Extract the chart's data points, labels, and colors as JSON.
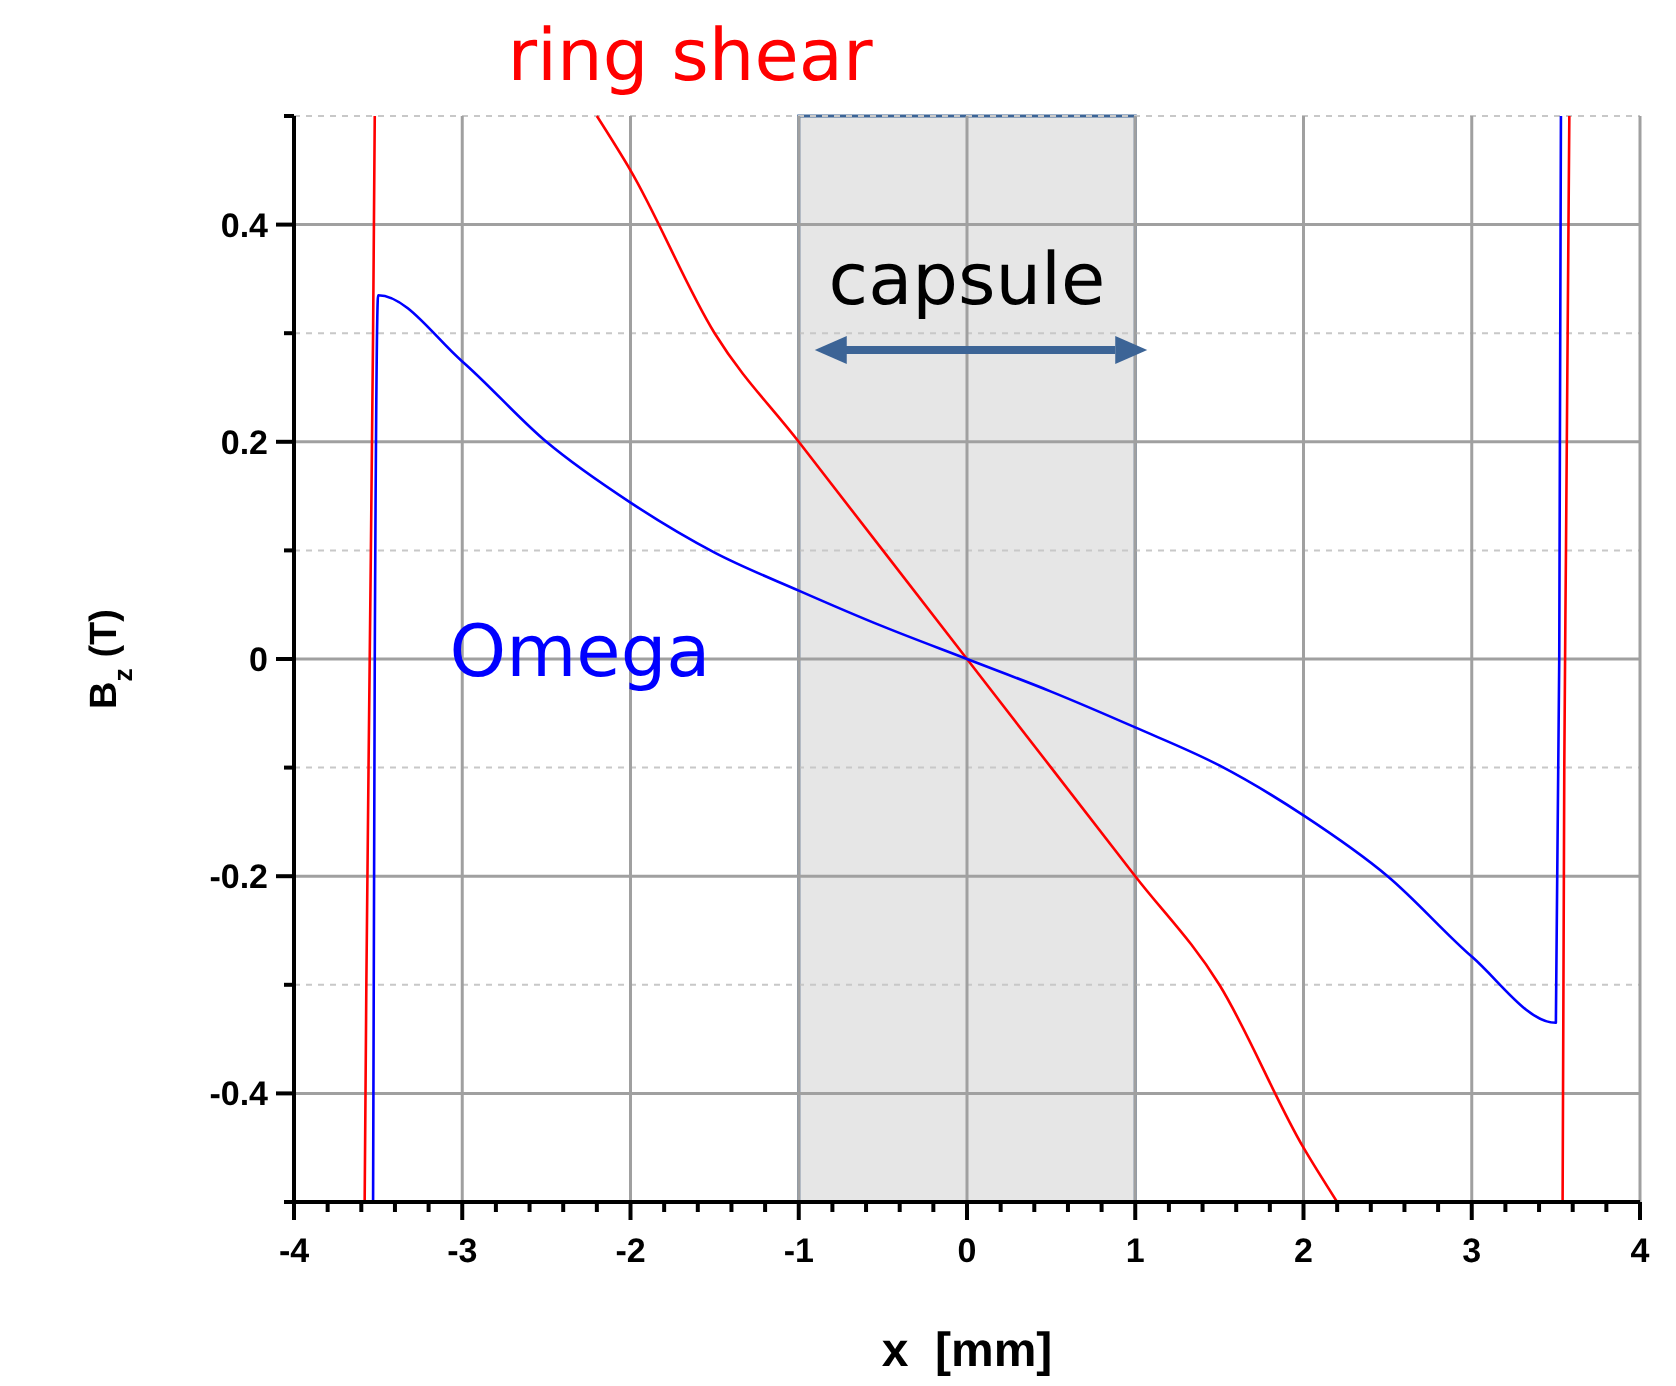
{
  "chart_data": {
    "type": "line",
    "xlabel": "x  [mm]",
    "ylabel": "B$_{z}$ (T)",
    "xlim": [
      -4,
      4
    ],
    "ylim": [
      -0.5,
      0.5
    ],
    "xticks": [
      -4,
      {
        "value": -3.8,
        "label": null
      },
      {
        "value": -3.6,
        "label": null
      },
      {
        "value": -3.4,
        "label": null
      },
      {
        "value": -3.2,
        "label": null
      },
      -3,
      {
        "value": -2.8,
        "label": null
      },
      {
        "value": -2.6,
        "label": null
      },
      {
        "value": -2.4,
        "label": null
      },
      {
        "value": -2.2,
        "label": null
      },
      -2,
      {
        "value": -1.8,
        "label": null
      },
      {
        "value": -1.6,
        "label": null
      },
      {
        "value": -1.4,
        "label": null
      },
      {
        "value": -1.2,
        "label": null
      },
      -1,
      {
        "value": -0.8,
        "label": null
      },
      {
        "value": -0.6,
        "label": null
      },
      {
        "value": -0.4,
        "label": null
      },
      {
        "value": -0.2,
        "label": null
      },
      0,
      {
        "value": 0.2,
        "label": null
      },
      {
        "value": 0.4,
        "label": null
      },
      {
        "value": 0.6,
        "label": null
      },
      {
        "value": 0.8,
        "label": null
      },
      1,
      {
        "value": 1.2,
        "label": null
      },
      {
        "value": 1.4,
        "label": null
      },
      {
        "value": 1.6,
        "label": null
      },
      {
        "value": 1.8,
        "label": null
      },
      2,
      {
        "value": 2.2,
        "label": null
      },
      {
        "value": 2.4,
        "label": null
      },
      {
        "value": 2.6,
        "label": null
      },
      {
        "value": 2.8,
        "label": null
      },
      3,
      {
        "value": 3.2,
        "label": null
      },
      {
        "value": 3.4,
        "label": null
      },
      {
        "value": 3.6,
        "label": null
      },
      {
        "value": 3.8,
        "label": null
      },
      4
    ],
    "yticks": [
      {
        "value": -0.5,
        "label": null
      },
      -0.4,
      {
        "value": -0.3,
        "label": null
      },
      -0.2,
      {
        "value": -0.1,
        "label": null
      },
      0,
      {
        "value": 0.1,
        "label": null
      },
      0.2,
      {
        "value": 0.3,
        "label": null
      },
      0.4,
      {
        "value": 0.5,
        "label": null
      }
    ],
    "grid": true,
    "line_style": "solid",
    "marker": "none",
    "bands": [
      {
        "axis": "x",
        "from": -1,
        "to": 1,
        "label": "capsule",
        "color": "#e6e6e6"
      }
    ],
    "series": [
      {
        "name": "ring shear",
        "color": "#ff0000",
        "x": [
          -3.58,
          -3.57,
          -3.55,
          -3.53,
          -3.52,
          -3.3,
          -2.2,
          -2,
          -1.5,
          -1,
          -0.5,
          0,
          0.5,
          1,
          1.5,
          2,
          2.2,
          3.3,
          3.54,
          3.55,
          3.56,
          3.58
        ],
        "values": [
          -0.5,
          -0.3,
          0,
          0.3,
          0.5,
          null,
          0.5,
          0.45,
          0.3,
          0.2,
          0.1,
          0,
          -0.1,
          -0.2,
          -0.3,
          -0.45,
          -0.5,
          null,
          -0.5,
          -0.1,
          0.1,
          0.5
        ]
      },
      {
        "name": "Omega",
        "color": "#0000ff",
        "x": [
          -3.53,
          -3.52,
          -3.5,
          -3,
          -2.5,
          -2,
          -1.5,
          -1,
          -0.5,
          0,
          0.5,
          1,
          1.5,
          2,
          2.5,
          3,
          3.5,
          3.52,
          3.53
        ],
        "values": [
          -0.5,
          0,
          0.335,
          0.274,
          0.2,
          0.144,
          0.098,
          0.063,
          0.03,
          0,
          -0.03,
          -0.063,
          -0.098,
          -0.144,
          -0.2,
          -0.274,
          -0.335,
          0,
          0.5
        ]
      }
    ]
  }
}
